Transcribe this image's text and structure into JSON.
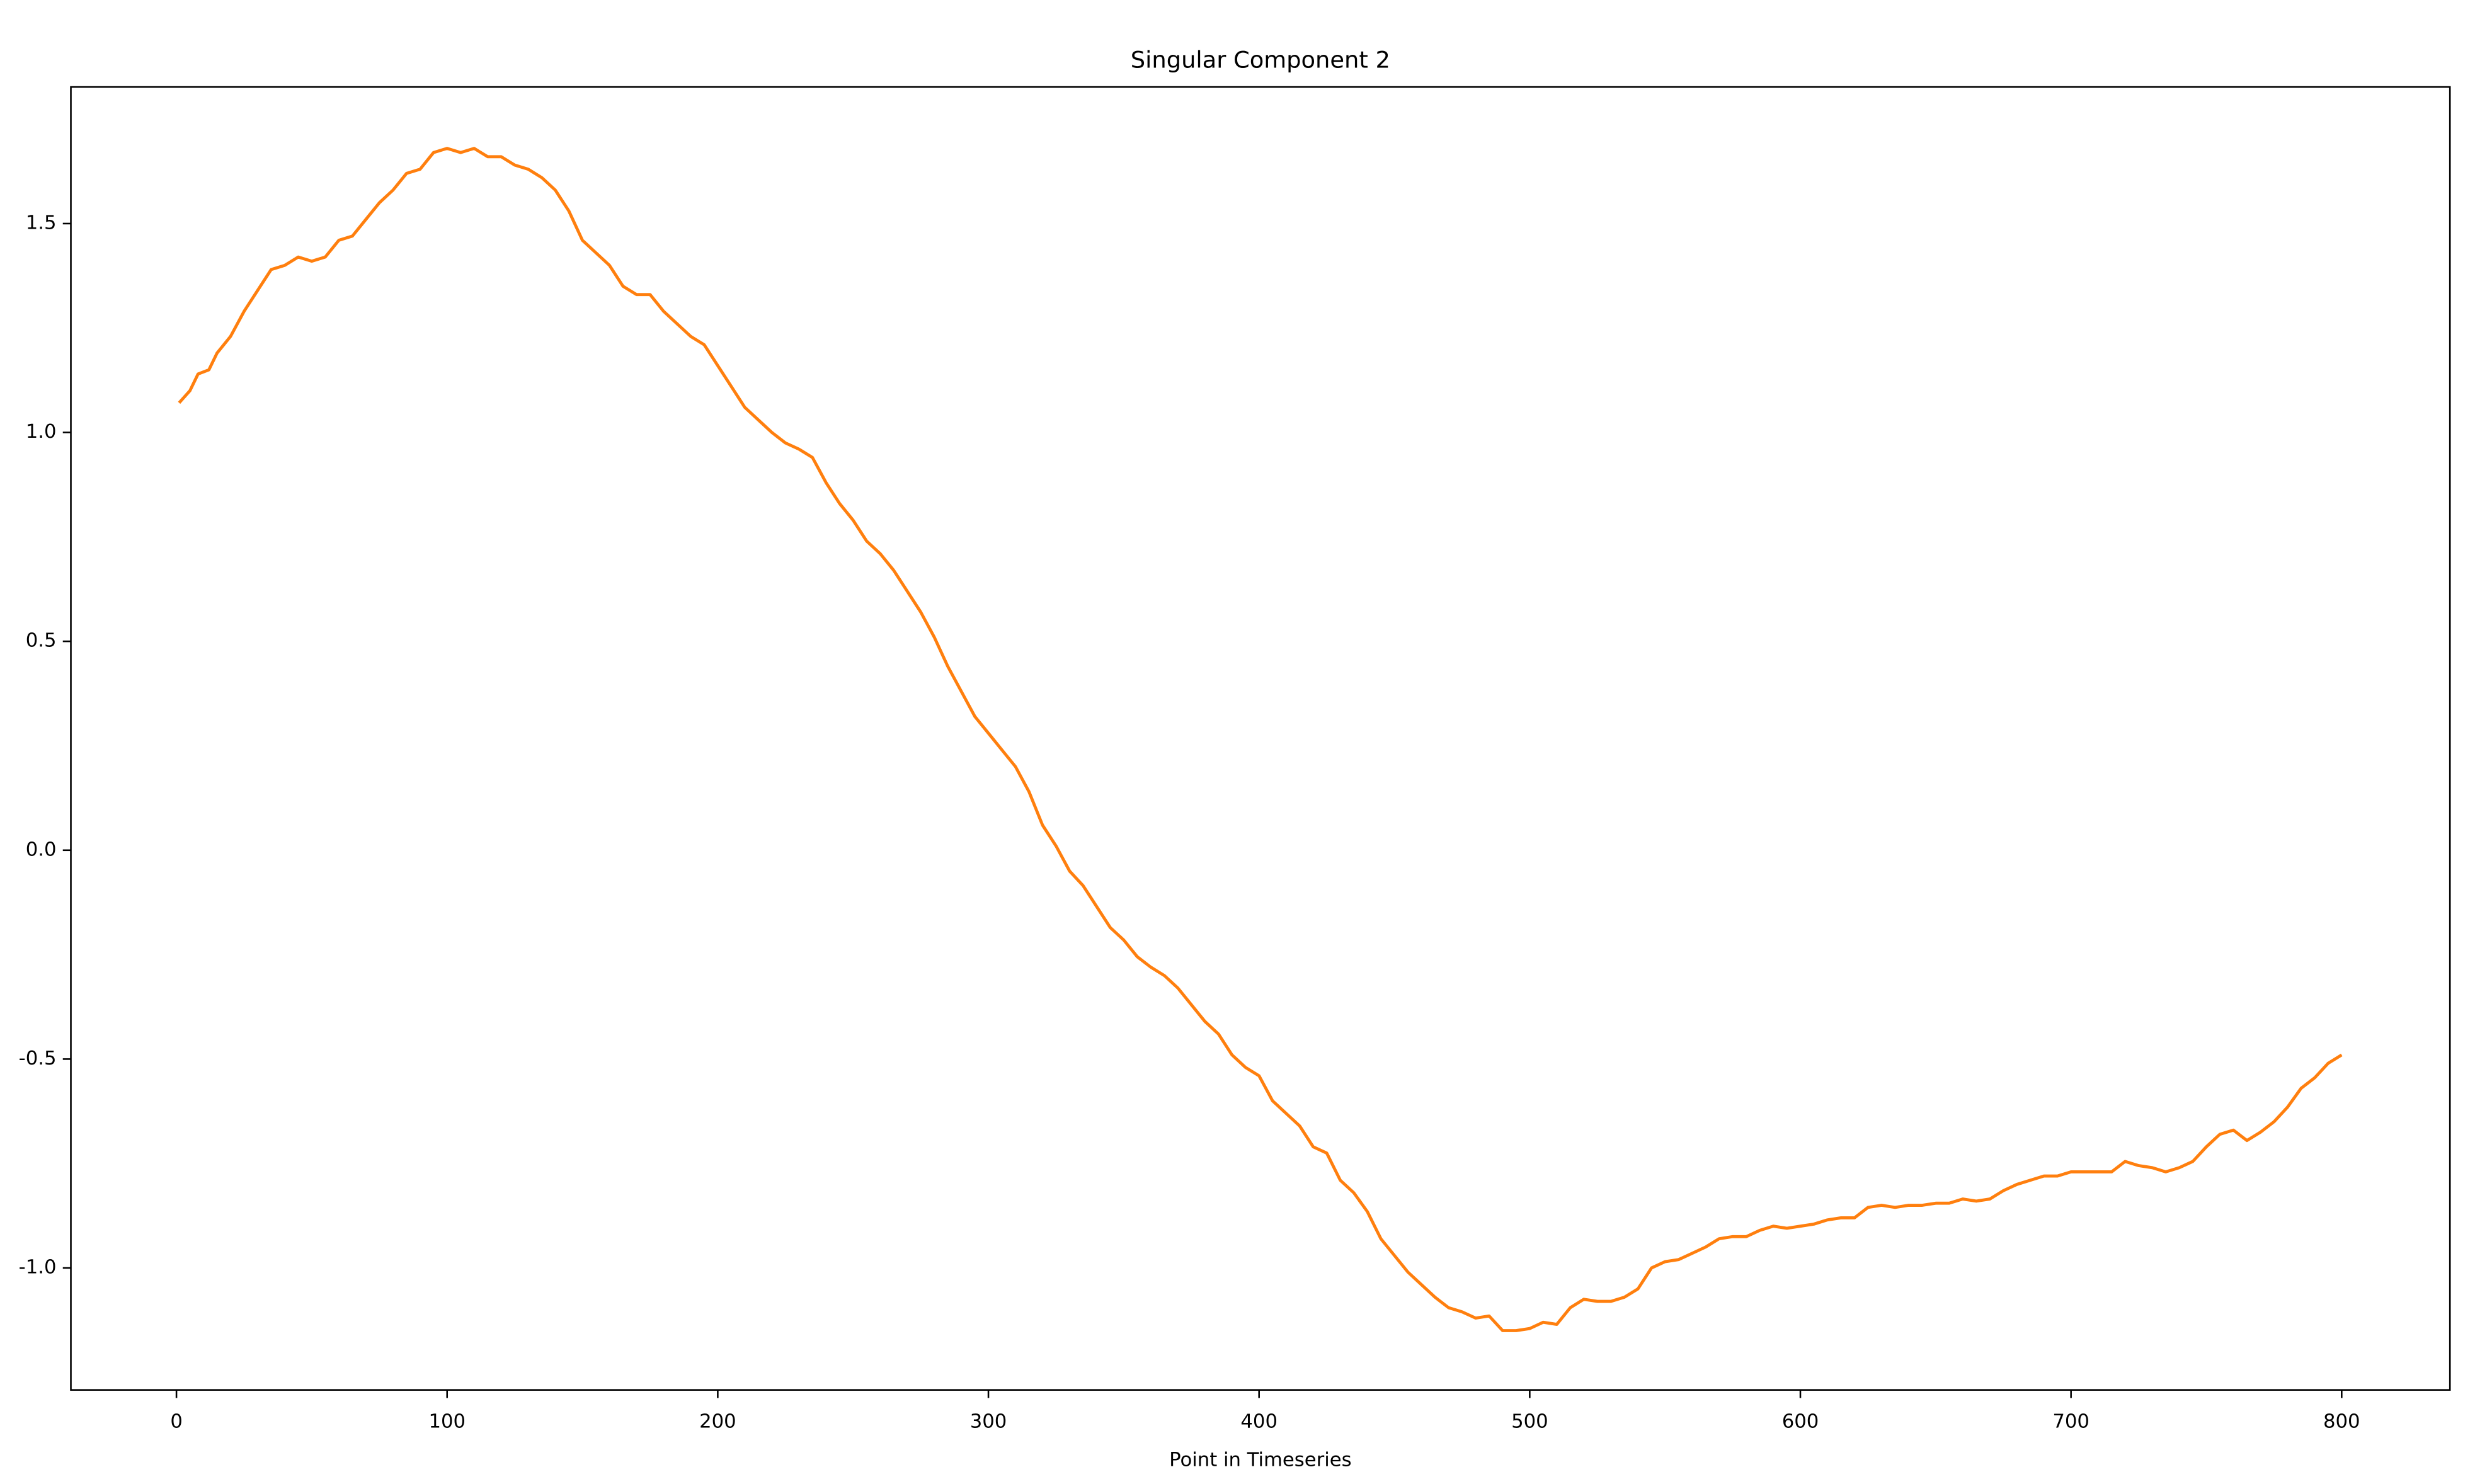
{
  "chart_data": {
    "type": "line",
    "title": "Singular Component 2",
    "xlabel": "Point in Timeseries",
    "x": [
      1,
      5,
      8,
      12,
      15,
      20,
      25,
      30,
      35,
      40,
      45,
      50,
      55,
      60,
      65,
      70,
      75,
      80,
      85,
      90,
      95,
      100,
      105,
      110,
      115,
      120,
      125,
      130,
      135,
      140,
      145,
      150,
      155,
      160,
      165,
      170,
      175,
      180,
      185,
      190,
      195,
      200,
      205,
      210,
      215,
      220,
      225,
      230,
      235,
      240,
      245,
      250,
      255,
      260,
      265,
      270,
      275,
      280,
      285,
      290,
      295,
      300,
      305,
      310,
      315,
      320,
      325,
      330,
      335,
      340,
      345,
      350,
      355,
      360,
      365,
      370,
      375,
      380,
      385,
      390,
      395,
      400,
      405,
      410,
      415,
      420,
      425,
      430,
      435,
      440,
      445,
      450,
      455,
      460,
      465,
      470,
      475,
      480,
      485,
      490,
      495,
      500,
      505,
      510,
      515,
      520,
      525,
      530,
      535,
      540,
      545,
      550,
      555,
      560,
      565,
      570,
      575,
      580,
      585,
      590,
      595,
      600,
      605,
      610,
      615,
      620,
      625,
      630,
      635,
      640,
      645,
      650,
      655,
      660,
      665,
      670,
      675,
      680,
      685,
      690,
      695,
      700,
      705,
      710,
      715,
      720,
      725,
      730,
      735,
      740,
      745,
      750,
      755,
      760,
      765,
      770,
      775,
      780,
      785,
      790,
      795,
      800
    ],
    "series": [
      {
        "name": "Singular Component 2",
        "color": "#ff7f0e",
        "values": [
          1.071,
          1.1,
          1.14,
          1.15,
          1.19,
          1.23,
          1.29,
          1.34,
          1.39,
          1.4,
          1.42,
          1.41,
          1.42,
          1.46,
          1.47,
          1.51,
          1.55,
          1.58,
          1.62,
          1.63,
          1.67,
          1.68,
          1.67,
          1.68,
          1.66,
          1.66,
          1.64,
          1.63,
          1.61,
          1.58,
          1.53,
          1.46,
          1.43,
          1.4,
          1.35,
          1.33,
          1.33,
          1.29,
          1.26,
          1.23,
          1.21,
          1.16,
          1.11,
          1.06,
          1.03,
          1.0,
          0.975,
          0.96,
          0.94,
          0.88,
          0.83,
          0.79,
          0.74,
          0.71,
          0.67,
          0.62,
          0.57,
          0.51,
          0.44,
          0.38,
          0.32,
          0.28,
          0.24,
          0.2,
          0.14,
          0.06,
          0.01,
          -0.05,
          -0.085,
          -0.135,
          -0.185,
          -0.215,
          -0.255,
          -0.28,
          -0.3,
          -0.33,
          -0.37,
          -0.41,
          -0.44,
          -0.49,
          -0.52,
          -0.54,
          -0.6,
          -0.63,
          -0.66,
          -0.71,
          -0.725,
          -0.79,
          -0.82,
          -0.865,
          -0.93,
          -0.97,
          -1.01,
          -1.04,
          -1.07,
          -1.095,
          -1.105,
          -1.12,
          -1.115,
          -1.15,
          -1.15,
          -1.145,
          -1.13,
          -1.135,
          -1.095,
          -1.075,
          -1.08,
          -1.08,
          -1.07,
          -1.05,
          -1.0,
          -0.985,
          -0.98,
          -0.965,
          -0.95,
          -0.93,
          -0.925,
          -0.925,
          -0.91,
          -0.9,
          -0.905,
          -0.9,
          -0.895,
          -0.885,
          -0.88,
          -0.88,
          -0.855,
          -0.85,
          -0.855,
          -0.85,
          -0.85,
          -0.845,
          -0.845,
          -0.835,
          -0.84,
          -0.835,
          -0.815,
          -0.8,
          -0.79,
          -0.78,
          -0.78,
          -0.77,
          -0.77,
          -0.77,
          -0.77,
          -0.745,
          -0.755,
          -0.76,
          -0.77,
          -0.76,
          -0.745,
          -0.71,
          -0.68,
          -0.67,
          -0.695,
          -0.675,
          -0.65,
          -0.615,
          -0.57,
          -0.545,
          -0.51,
          -0.49
        ]
      }
    ],
    "xlim": [
      -39,
      840
    ],
    "xticks": [
      0,
      100,
      200,
      300,
      400,
      500,
      600,
      700,
      800
    ],
    "ylim": [
      -1.292,
      1.827
    ],
    "yticks": [
      {
        "value": -1,
        "label": "-1.0"
      },
      -0.5,
      {
        "value": 0,
        "label": "0.0"
      },
      0.5,
      {
        "value": 1,
        "label": "1.0"
      },
      1.5
    ],
    "grid": false
  }
}
